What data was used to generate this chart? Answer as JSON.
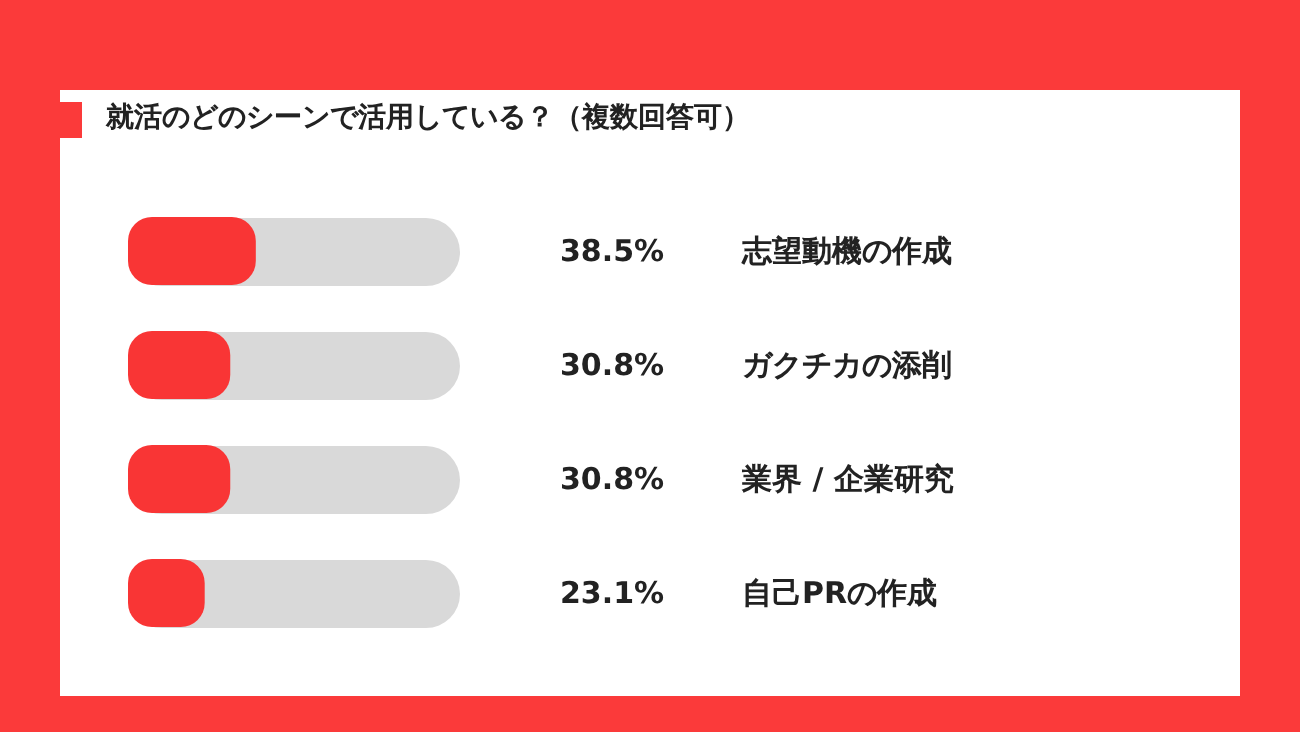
{
  "chart_data": {
    "type": "bar",
    "orientation": "horizontal",
    "title": "就活のどのシーンで活用している？（複数回答可）",
    "categories": [
      "志望動機の作成",
      "ガクチカの添削",
      "業界 / 企業研究",
      "自己PRの作成"
    ],
    "values": [
      38.5,
      30.8,
      30.8,
      23.1
    ],
    "value_labels": [
      "38.5%",
      "30.8%",
      "30.8%",
      "23.1%"
    ],
    "color": "#f93535",
    "xlim": [
      0,
      100
    ],
    "tick_labels": "y"
  }
}
